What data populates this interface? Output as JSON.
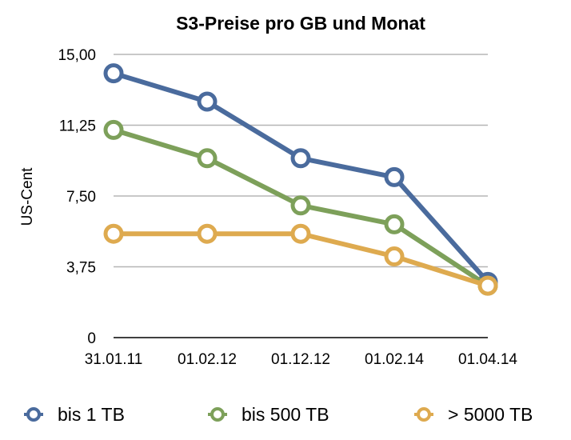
{
  "chart_data": {
    "type": "line",
    "title": "S3-Preise pro GB und Monat",
    "xlabel": "",
    "ylabel": "US-Cent",
    "categories": [
      "31.01.11",
      "01.02.12",
      "01.12.12",
      "01.02.14",
      "01.04.14"
    ],
    "y_ticks": [
      "0",
      "3,75",
      "7,50",
      "11,25",
      "15,00"
    ],
    "ylim": [
      0,
      15
    ],
    "grid": true,
    "legend_position": "bottom",
    "series": [
      {
        "name": "bis 1 TB",
        "color": "#4a6b9d",
        "values": [
          14.0,
          12.5,
          9.5,
          8.5,
          2.95
        ]
      },
      {
        "name": "bis 500 TB",
        "color": "#7da05a",
        "values": [
          11.0,
          9.5,
          7.0,
          6.0,
          2.75
        ]
      },
      {
        "name": "> 5000 TB",
        "color": "#deaa4f",
        "values": [
          5.5,
          5.5,
          5.5,
          4.3,
          2.75
        ]
      }
    ]
  }
}
